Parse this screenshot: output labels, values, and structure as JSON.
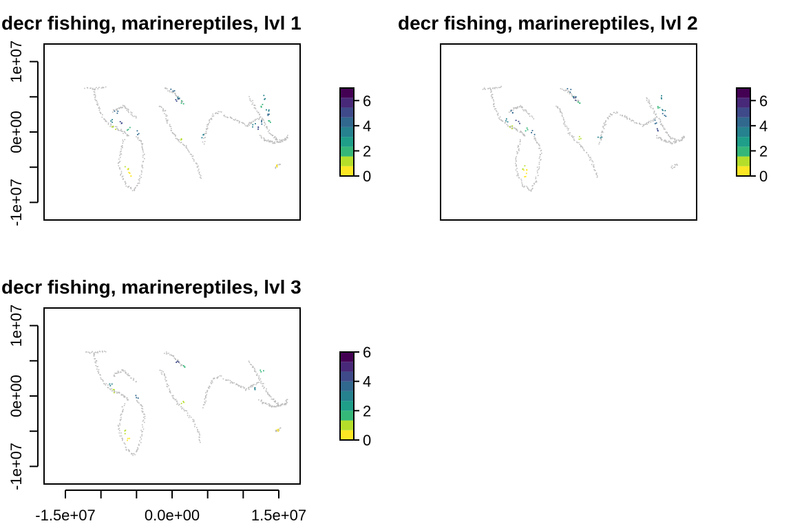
{
  "colors": {
    "na_land": "#bdbdbd",
    "palette": [
      "#fde725",
      "#b5de2b",
      "#35b779",
      "#1f9e89",
      "#26828e",
      "#31688e",
      "#3e4a89",
      "#482878",
      "#440154"
    ]
  },
  "chart_data": [
    {
      "type": "heatmap",
      "title": "decr fishing, marinereptiles, lvl 1",
      "ylim": [
        -12500000,
        12500000
      ],
      "xlim": [
        -18000000,
        18000000
      ],
      "y_ticks": [
        {
          "value": 10000000,
          "label": "1e+07"
        },
        {
          "value": 0,
          "label": "0e+00"
        },
        {
          "value": -10000000,
          "label": "-1e+07"
        }
      ],
      "x_ticks": [],
      "legend": {
        "min": 0,
        "max": 7,
        "ticks": [
          0,
          2,
          4,
          6
        ],
        "tick_labels": [
          "0",
          "2",
          "4",
          "6"
        ]
      }
    },
    {
      "type": "heatmap",
      "title": "decr fishing, marinereptiles, lvl 2",
      "ylim": [
        -12500000,
        12500000
      ],
      "xlim": [
        -18000000,
        18000000
      ],
      "y_ticks": [],
      "x_ticks": [],
      "legend": {
        "min": 0,
        "max": 7,
        "ticks": [
          0,
          2,
          4,
          6
        ],
        "tick_labels": [
          "0",
          "2",
          "4",
          "6"
        ]
      }
    },
    {
      "type": "heatmap",
      "title": "decr fishing, marinereptiles, lvl 3",
      "ylim": [
        -12500000,
        12500000
      ],
      "xlim": [
        -18000000,
        18000000
      ],
      "y_ticks": [
        {
          "value": 10000000,
          "label": "1e+07"
        },
        {
          "value": 0,
          "label": "0e+00"
        },
        {
          "value": -10000000,
          "label": "-1e+07"
        }
      ],
      "x_ticks": [
        {
          "value": -15000000,
          "label": "-1.5e+07"
        },
        {
          "value": -10000000,
          "label": ""
        },
        {
          "value": -5000000,
          "label": ""
        },
        {
          "value": 0,
          "label": "0.0e+00"
        },
        {
          "value": 5000000,
          "label": ""
        },
        {
          "value": 10000000,
          "label": ""
        },
        {
          "value": 15000000,
          "label": "1.5e+07"
        }
      ],
      "legend": {
        "min": 0,
        "max": 6,
        "ticks": [
          0,
          2,
          4,
          6
        ],
        "tick_labels": [
          "0",
          "2",
          "4",
          "6"
        ]
      }
    }
  ]
}
